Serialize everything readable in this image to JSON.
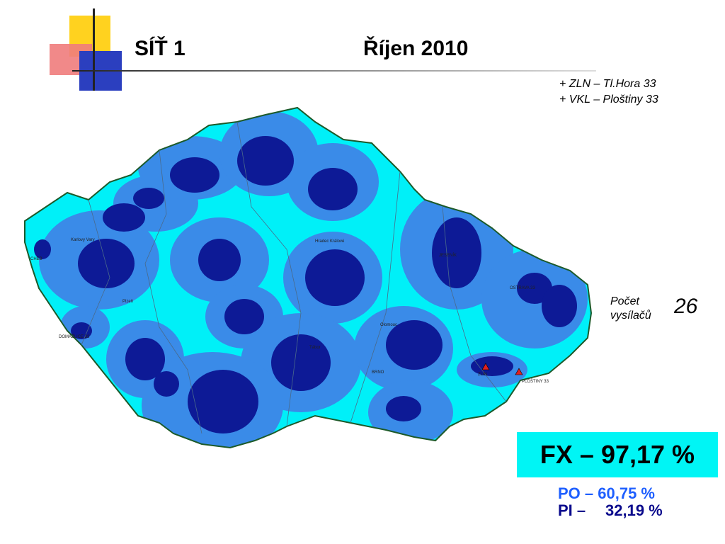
{
  "header": {
    "title_left": "SÍŤ 1",
    "title_right": "Říjen 2010"
  },
  "notes": [
    "+ ZLN – Tl.Hora 33",
    "+ VKL – Ploštiny 33"
  ],
  "stats": {
    "count_label_line1": "Počet",
    "count_label_line2": "vysílačů",
    "count_value": "26",
    "fx": "FX – 97,17 %",
    "po": "PO – 60,75 %",
    "pi_label": "PI –",
    "pi_value": "32,19 %"
  },
  "map_labels": {
    "cheb": "CHEB",
    "karlovy_vary": "Karlovy Vary",
    "plzen": "Plzeň",
    "domazlice": "DOMAŽLICE 33",
    "hradec": "Hradec Králové",
    "jesenik": "JESENÍK",
    "ostrava": "OSTRAVA 33",
    "olomouc": "Olomouc",
    "brno": "BRNO",
    "ploštiny": "PLOŠTINY 33",
    "tabor": "Tábor",
    "zlin": "ZLÍN"
  },
  "colors": {
    "coverage_fx": "#00f0f8",
    "coverage_po": "#3a8be8",
    "coverage_pi": "#0d1a96",
    "border": "#1c5a2a",
    "title_bar_yellow": "#ffd21f",
    "title_bar_red": "#f07c7c",
    "title_bar_blue": "#2b3fbf"
  }
}
